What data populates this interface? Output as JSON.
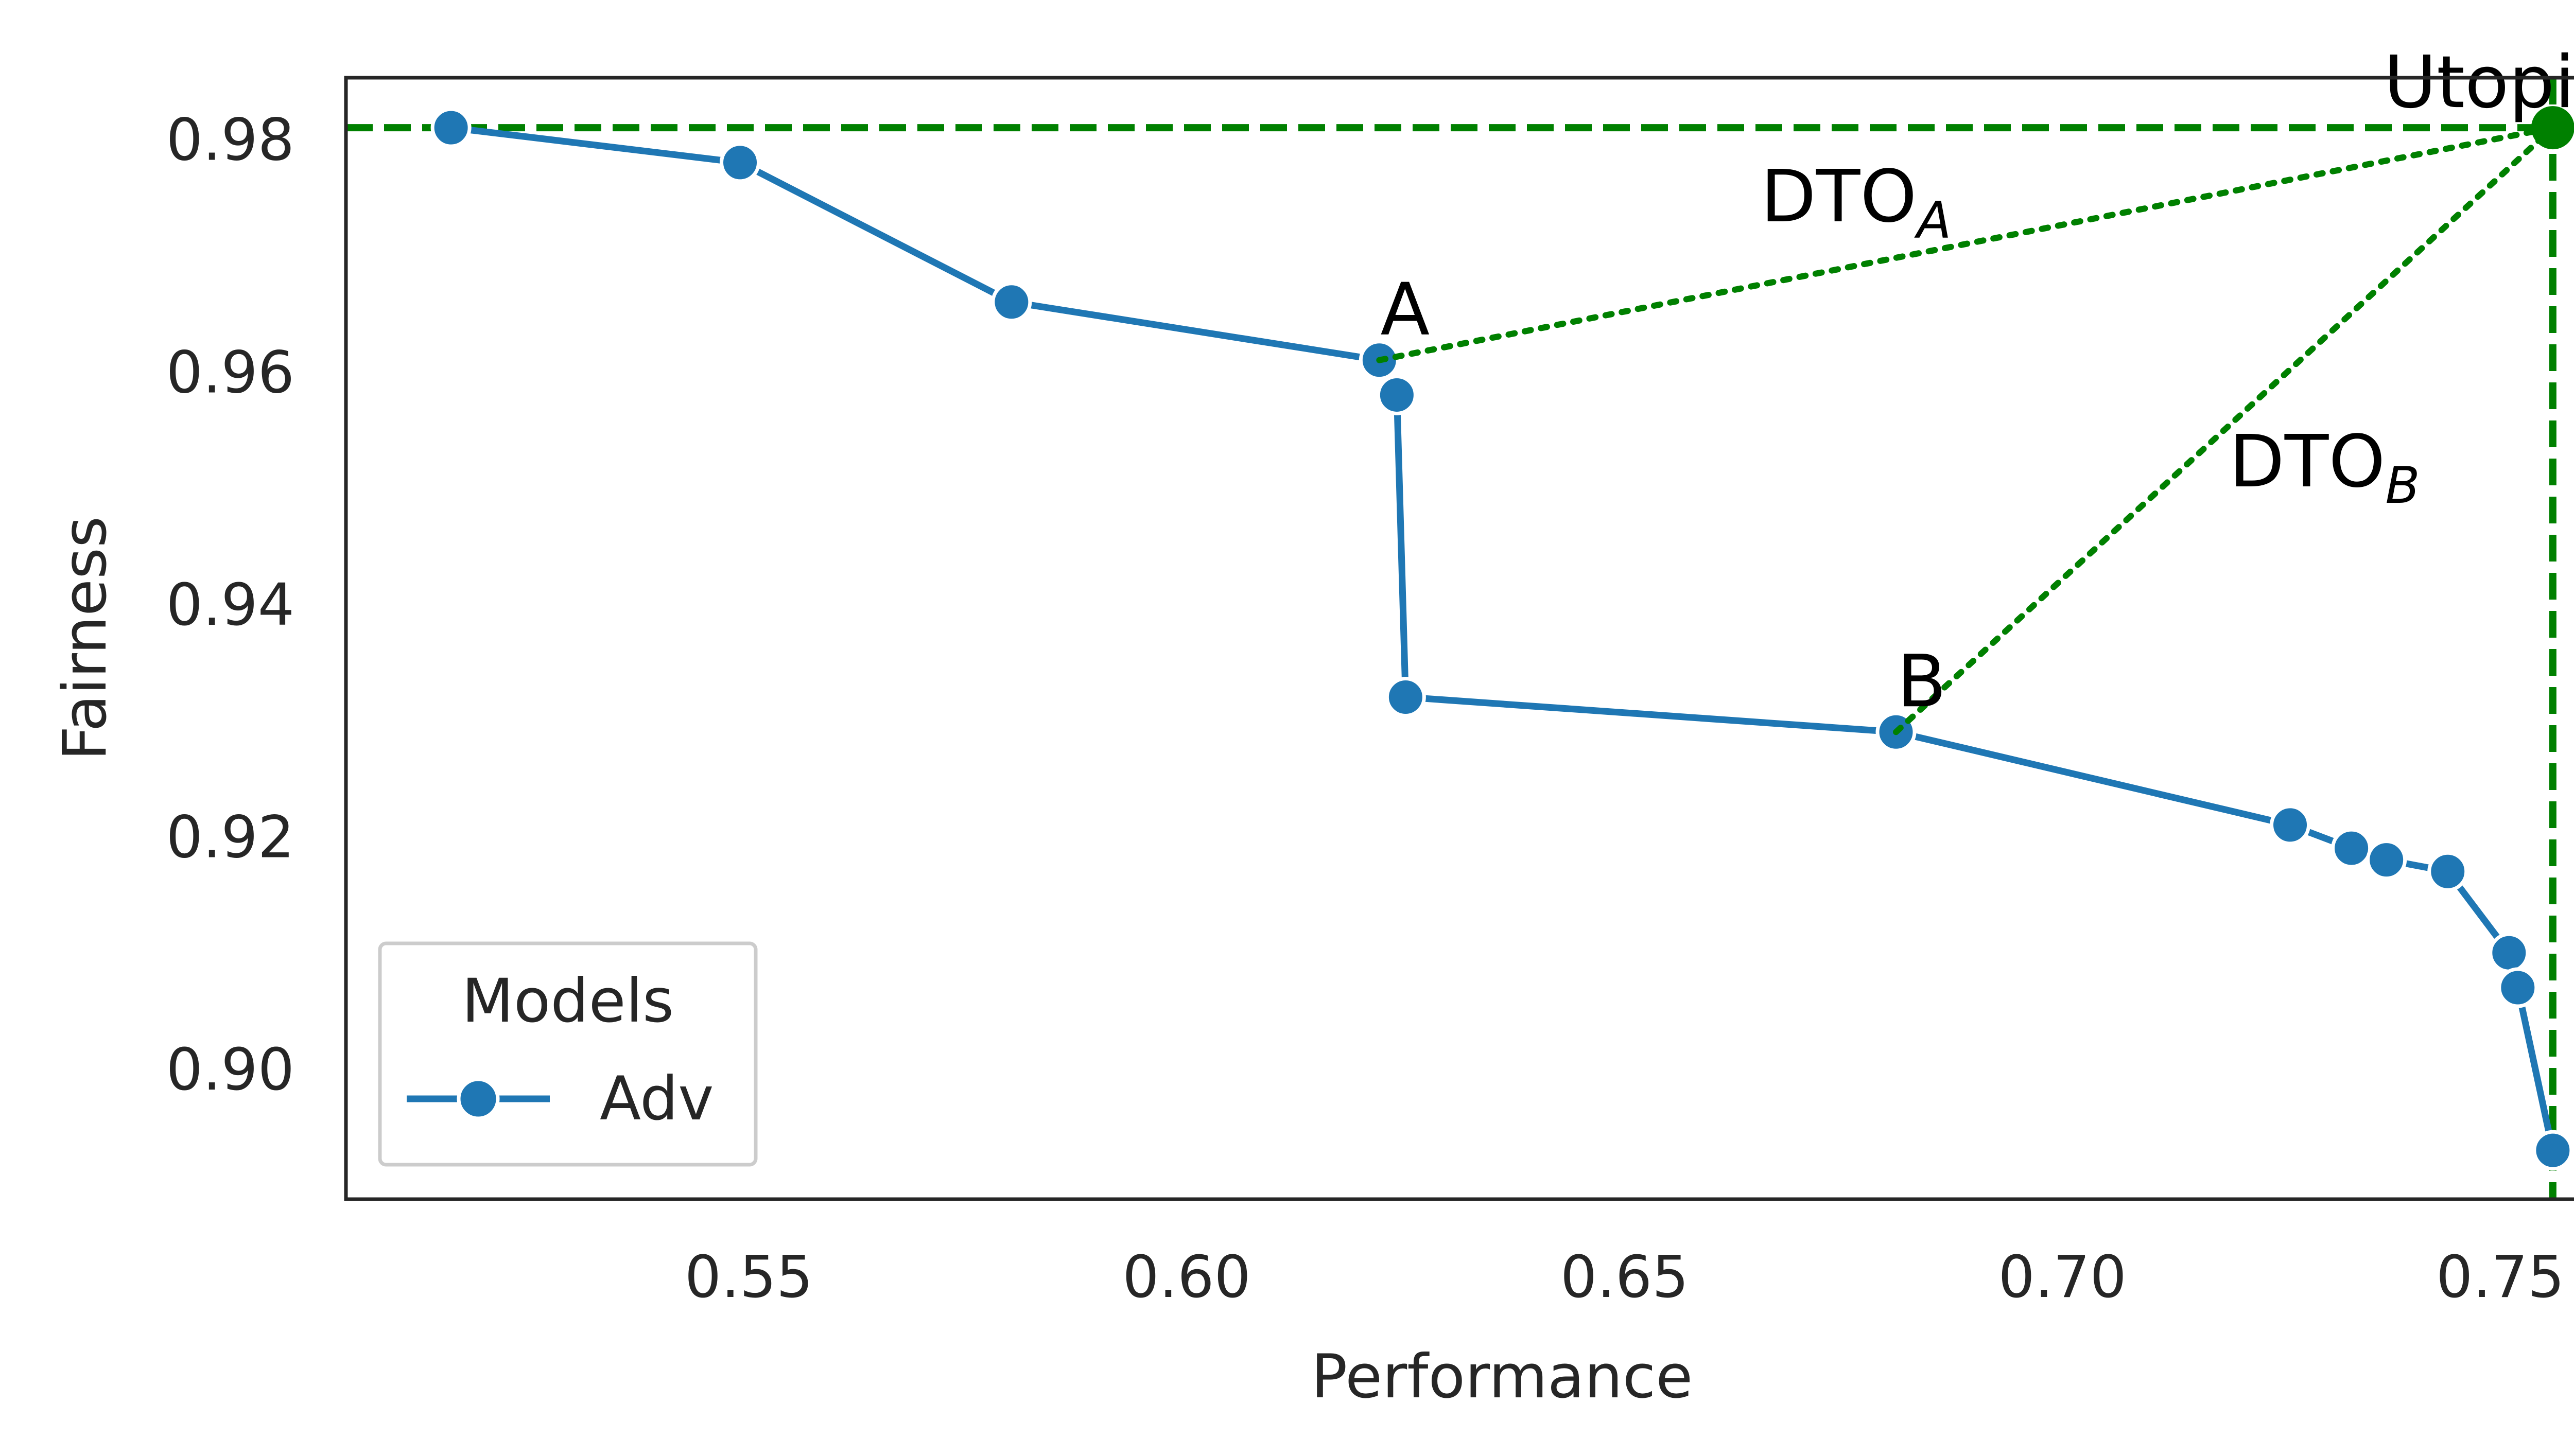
{
  "chart_data": {
    "type": "line",
    "title": "",
    "xlabel": "Performance",
    "ylabel": "Fairness",
    "xlim": [
      0.504,
      0.768
    ],
    "ylim": [
      0.8888,
      0.9853
    ],
    "xticks": [
      0.55,
      0.6,
      0.65,
      0.7,
      0.75
    ],
    "xtick_labels": [
      "0.55",
      "0.60",
      "0.65",
      "0.70",
      "0.75"
    ],
    "yticks": [
      0.9,
      0.92,
      0.94,
      0.96,
      0.98
    ],
    "ytick_labels": [
      "0.90",
      "0.92",
      "0.94",
      "0.96",
      "0.98"
    ],
    "grid": false,
    "legend": {
      "title": "Models",
      "position": "lower-left"
    },
    "series": [
      {
        "name": "Adv",
        "color": "#1f77b4",
        "marker": "circle",
        "x": [
          0.516,
          0.549,
          0.58,
          0.622,
          0.624,
          0.625,
          0.681,
          0.726,
          0.733,
          0.737,
          0.744,
          0.751,
          0.752,
          0.756
        ],
        "y": [
          0.981,
          0.978,
          0.966,
          0.961,
          0.958,
          0.932,
          0.929,
          0.921,
          0.919,
          0.918,
          0.917,
          0.91,
          0.907,
          0.893
        ]
      }
    ],
    "utopia": {
      "label": "Utopia",
      "x": 0.756,
      "y": 0.981,
      "color": "#008000"
    },
    "points": [
      {
        "label": "A",
        "x": 0.622,
        "y": 0.961
      },
      {
        "label": "B",
        "x": 0.681,
        "y": 0.929
      }
    ],
    "distance_lines": [
      {
        "label_main": "DTO",
        "label_sub": "A",
        "from": [
          0.622,
          0.961
        ],
        "to": [
          0.756,
          0.981
        ]
      },
      {
        "label_main": "DTO",
        "label_sub": "B",
        "from": [
          0.681,
          0.929
        ],
        "to": [
          0.756,
          0.981
        ]
      }
    ]
  }
}
